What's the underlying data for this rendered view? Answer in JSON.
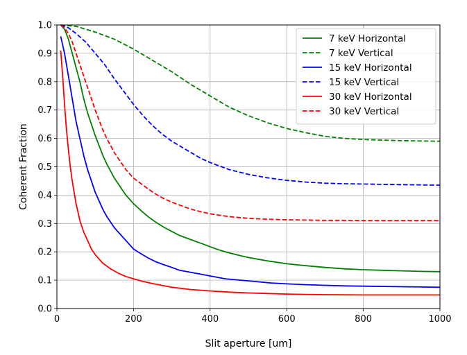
{
  "chart_data": {
    "type": "line",
    "title": "",
    "xlabel": "Slit aperture [um]",
    "ylabel": "Coherent Fraction",
    "xlim": [
      0,
      1000
    ],
    "ylim": [
      0,
      1.0
    ],
    "xticks": [
      0,
      200,
      400,
      600,
      800,
      1000
    ],
    "yticks": [
      0.0,
      0.1,
      0.2,
      0.3,
      0.4,
      0.5,
      0.6,
      0.7,
      0.8,
      0.9,
      1.0
    ],
    "xtick_labels": [
      "0",
      "200",
      "400",
      "600",
      "800",
      "1000"
    ],
    "ytick_labels": [
      "0.0",
      "0.1",
      "0.2",
      "0.3",
      "0.4",
      "0.5",
      "0.6",
      "0.7",
      "0.8",
      "0.9",
      "1.0"
    ],
    "grid": true,
    "legend_position": "top-right",
    "series": [
      {
        "name": "7 keV Horizontal",
        "color": "#008000",
        "dash": "solid",
        "x": [
          10,
          20,
          30,
          40,
          50,
          60,
          70,
          80,
          90,
          100,
          110,
          120,
          130,
          140,
          150,
          160,
          170,
          180,
          190,
          200,
          220,
          240,
          260,
          280,
          300,
          320,
          340,
          360,
          380,
          400,
          420,
          440,
          460,
          480,
          500,
          550,
          600,
          650,
          700,
          750,
          800,
          850,
          900,
          950,
          1000
        ],
        "y": [
          1.0,
          0.985,
          0.95,
          0.9,
          0.85,
          0.8,
          0.74,
          0.69,
          0.65,
          0.61,
          0.575,
          0.54,
          0.51,
          0.485,
          0.46,
          0.44,
          0.42,
          0.4,
          0.385,
          0.37,
          0.345,
          0.322,
          0.303,
          0.286,
          0.272,
          0.258,
          0.248,
          0.238,
          0.228,
          0.218,
          0.208,
          0.2,
          0.193,
          0.186,
          0.18,
          0.168,
          0.158,
          0.151,
          0.145,
          0.14,
          0.137,
          0.135,
          0.133,
          0.131,
          0.13
        ]
      },
      {
        "name": "7 keV Vertical",
        "color": "#008000",
        "dash": "dashed",
        "x": [
          10,
          50,
          100,
          150,
          200,
          250,
          300,
          350,
          400,
          450,
          500,
          550,
          600,
          650,
          700,
          750,
          800,
          850,
          900,
          950,
          1000
        ],
        "y": [
          1.0,
          0.995,
          0.975,
          0.95,
          0.915,
          0.875,
          0.835,
          0.79,
          0.75,
          0.71,
          0.68,
          0.655,
          0.635,
          0.62,
          0.607,
          0.6,
          0.596,
          0.594,
          0.592,
          0.591,
          0.59
        ]
      },
      {
        "name": "15 keV Horizontal",
        "color": "#0000ff",
        "dash": "solid",
        "x": [
          10,
          20,
          30,
          40,
          50,
          60,
          70,
          80,
          90,
          100,
          110,
          120,
          130,
          140,
          150,
          160,
          170,
          180,
          190,
          200,
          220,
          240,
          260,
          280,
          300,
          320,
          340,
          360,
          380,
          400,
          440,
          480,
          520,
          560,
          600,
          650,
          700,
          750,
          800,
          850,
          900,
          950,
          1000
        ],
        "y": [
          0.96,
          0.9,
          0.82,
          0.74,
          0.66,
          0.6,
          0.54,
          0.49,
          0.45,
          0.41,
          0.38,
          0.35,
          0.325,
          0.305,
          0.285,
          0.27,
          0.255,
          0.24,
          0.225,
          0.21,
          0.193,
          0.177,
          0.164,
          0.154,
          0.145,
          0.135,
          0.13,
          0.125,
          0.12,
          0.115,
          0.105,
          0.1,
          0.095,
          0.09,
          0.087,
          0.084,
          0.082,
          0.08,
          0.079,
          0.078,
          0.077,
          0.076,
          0.075
        ]
      },
      {
        "name": "15 keV Vertical",
        "color": "#0000ff",
        "dash": "dashed",
        "x": [
          10,
          30,
          50,
          75,
          100,
          125,
          150,
          175,
          200,
          225,
          250,
          275,
          300,
          325,
          350,
          375,
          400,
          450,
          500,
          550,
          600,
          650,
          700,
          750,
          800,
          850,
          900,
          950,
          1000
        ],
        "y": [
          1.0,
          0.99,
          0.97,
          0.94,
          0.9,
          0.86,
          0.81,
          0.765,
          0.72,
          0.68,
          0.645,
          0.615,
          0.59,
          0.57,
          0.55,
          0.53,
          0.515,
          0.49,
          0.473,
          0.461,
          0.452,
          0.446,
          0.442,
          0.44,
          0.439,
          0.438,
          0.437,
          0.436,
          0.435
        ]
      },
      {
        "name": "30 keV Horizontal",
        "color": "#ff0000",
        "dash": "solid",
        "x": [
          10,
          15,
          20,
          25,
          30,
          35,
          40,
          45,
          50,
          55,
          60,
          70,
          80,
          90,
          100,
          120,
          140,
          160,
          180,
          200,
          220,
          250,
          300,
          350,
          400,
          450,
          500,
          550,
          600,
          650,
          700,
          800,
          900,
          1000
        ],
        "y": [
          0.91,
          0.82,
          0.72,
          0.63,
          0.56,
          0.5,
          0.45,
          0.41,
          0.37,
          0.34,
          0.31,
          0.27,
          0.24,
          0.21,
          0.19,
          0.16,
          0.14,
          0.125,
          0.113,
          0.105,
          0.097,
          0.088,
          0.075,
          0.067,
          0.062,
          0.058,
          0.055,
          0.053,
          0.051,
          0.05,
          0.049,
          0.048,
          0.048,
          0.048
        ]
      },
      {
        "name": "30 keV Vertical",
        "color": "#ff0000",
        "dash": "dashed",
        "x": [
          10,
          20,
          30,
          40,
          50,
          60,
          70,
          80,
          90,
          100,
          110,
          120,
          130,
          140,
          150,
          160,
          170,
          180,
          190,
          200,
          220,
          240,
          260,
          280,
          300,
          320,
          340,
          360,
          380,
          400,
          450,
          500,
          550,
          600,
          650,
          700,
          750,
          800,
          850,
          900,
          950,
          1000
        ],
        "y": [
          1.0,
          0.99,
          0.97,
          0.94,
          0.9,
          0.86,
          0.82,
          0.78,
          0.74,
          0.7,
          0.665,
          0.63,
          0.6,
          0.575,
          0.55,
          0.53,
          0.51,
          0.49,
          0.475,
          0.46,
          0.44,
          0.42,
          0.402,
          0.387,
          0.375,
          0.365,
          0.355,
          0.347,
          0.34,
          0.334,
          0.324,
          0.318,
          0.315,
          0.313,
          0.312,
          0.311,
          0.311,
          0.31,
          0.31,
          0.31,
          0.31,
          0.31
        ]
      }
    ]
  }
}
